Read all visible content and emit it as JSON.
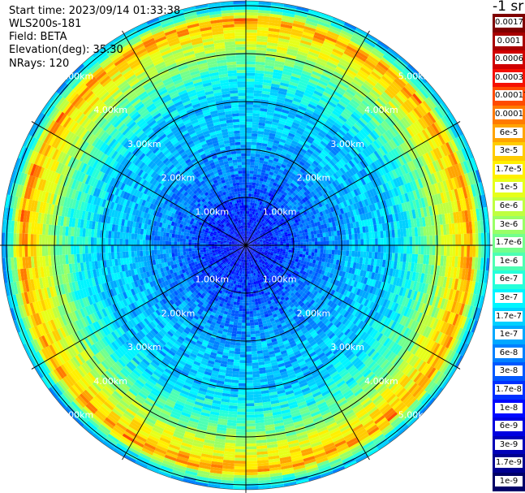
{
  "info": {
    "start_time": "Start time: 2023/09/14 01:33:38",
    "instrument": "WLS200s-181",
    "field": "Field: BETA",
    "elevation": "Elevation(deg): 35.30",
    "nrays": "NRays: 120"
  },
  "colorbar": {
    "unit": "-1 sr",
    "labels": [
      "0.0017",
      "0.001",
      "0.0006",
      "0.0003",
      "0.00017",
      "0.0001",
      "6e-5",
      "3e-5",
      "1.7e-5",
      "1e-5",
      "6e-6",
      "3e-6",
      "1.7e-6",
      "1e-6",
      "6e-7",
      "3e-7",
      "1.7e-7",
      "1e-7",
      "6e-8",
      "3e-8",
      "1.7e-8",
      "1e-8",
      "6e-9",
      "3e-9",
      "1.7e-9",
      "1e-9"
    ],
    "colors": [
      "#7f0000",
      "#a80000",
      "#d00000",
      "#f51000",
      "#ff4a00",
      "#ff7a00",
      "#ffa400",
      "#ffcc00",
      "#fff000",
      "#e6ff1a",
      "#bfff40",
      "#99ff66",
      "#73ff8c",
      "#4dffb3",
      "#26ffd9",
      "#00f5ff",
      "#00d0ff",
      "#00a8ff",
      "#0080ff",
      "#0058ff",
      "#0030ff",
      "#0008ff",
      "#0000e0",
      "#0000b8",
      "#000090",
      "#000068"
    ]
  },
  "chart_data": {
    "type": "heatmap",
    "projection": "polar (PPI scan)",
    "field": "BETA",
    "rays": 120,
    "range_rings_km": [
      1,
      2,
      3,
      4,
      5
    ],
    "ring_labels": [
      "1.00km",
      "2.00km",
      "3.00km",
      "4.00km",
      "5.00km"
    ],
    "radial_lines_deg": [
      0,
      30,
      60,
      90,
      120,
      150,
      180,
      210,
      240,
      270,
      300,
      330
    ],
    "max_range_km": 5.1,
    "color_scale": "log",
    "value_range": [
      1e-09,
      0.0017
    ],
    "radial_profile": {
      "range_km": [
        0.0,
        0.5,
        1.0,
        1.5,
        2.0,
        2.5,
        3.0,
        3.3,
        3.6,
        3.9,
        4.2,
        4.5,
        4.7,
        4.9,
        5.1
      ],
      "beta": [
        1e-08,
        1.7e-08,
        3e-08,
        6e-08,
        1e-07,
        1.7e-07,
        1.7e-07,
        3e-07,
        6e-07,
        1.7e-06,
        6e-06,
        1.7e-05,
        6e-05,
        1e-06,
        1e-07
      ]
    }
  }
}
